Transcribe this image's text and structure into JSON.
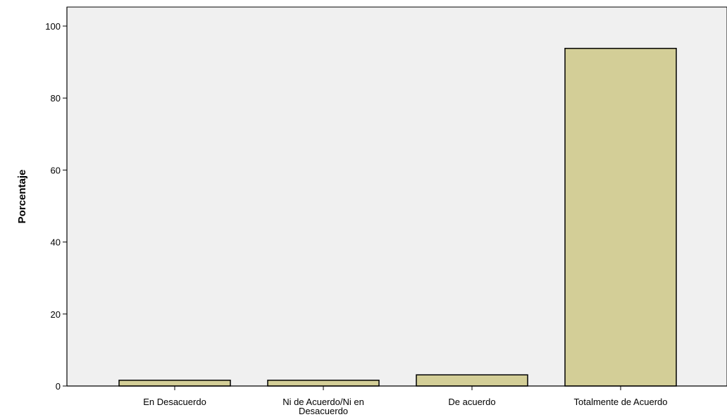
{
  "chart_data": {
    "type": "bar",
    "title": "",
    "xlabel": "",
    "ylabel": "Porcentaje",
    "categories": [
      "En Desacuerdo",
      "Ni de Acuerdo/Ni en Desacuerdo",
      "De acuerdo",
      "Totalmente de Acuerdo"
    ],
    "category_lines": [
      [
        "En Desacuerdo"
      ],
      [
        "Ni de Acuerdo/Ni en",
        "Desacuerdo"
      ],
      [
        "De acuerdo"
      ],
      [
        "Totalmente de Acuerdo"
      ]
    ],
    "values": [
      1.6,
      1.6,
      3.1,
      93.8
    ],
    "ylim": [
      0,
      100
    ],
    "yticks": [
      0,
      20,
      40,
      60,
      80,
      100
    ],
    "grid": false,
    "legend": "none",
    "colors": {
      "plot_background": "#f0f0f0",
      "bar_fill": "#d3ce97",
      "bar_stroke": "#000000"
    }
  }
}
